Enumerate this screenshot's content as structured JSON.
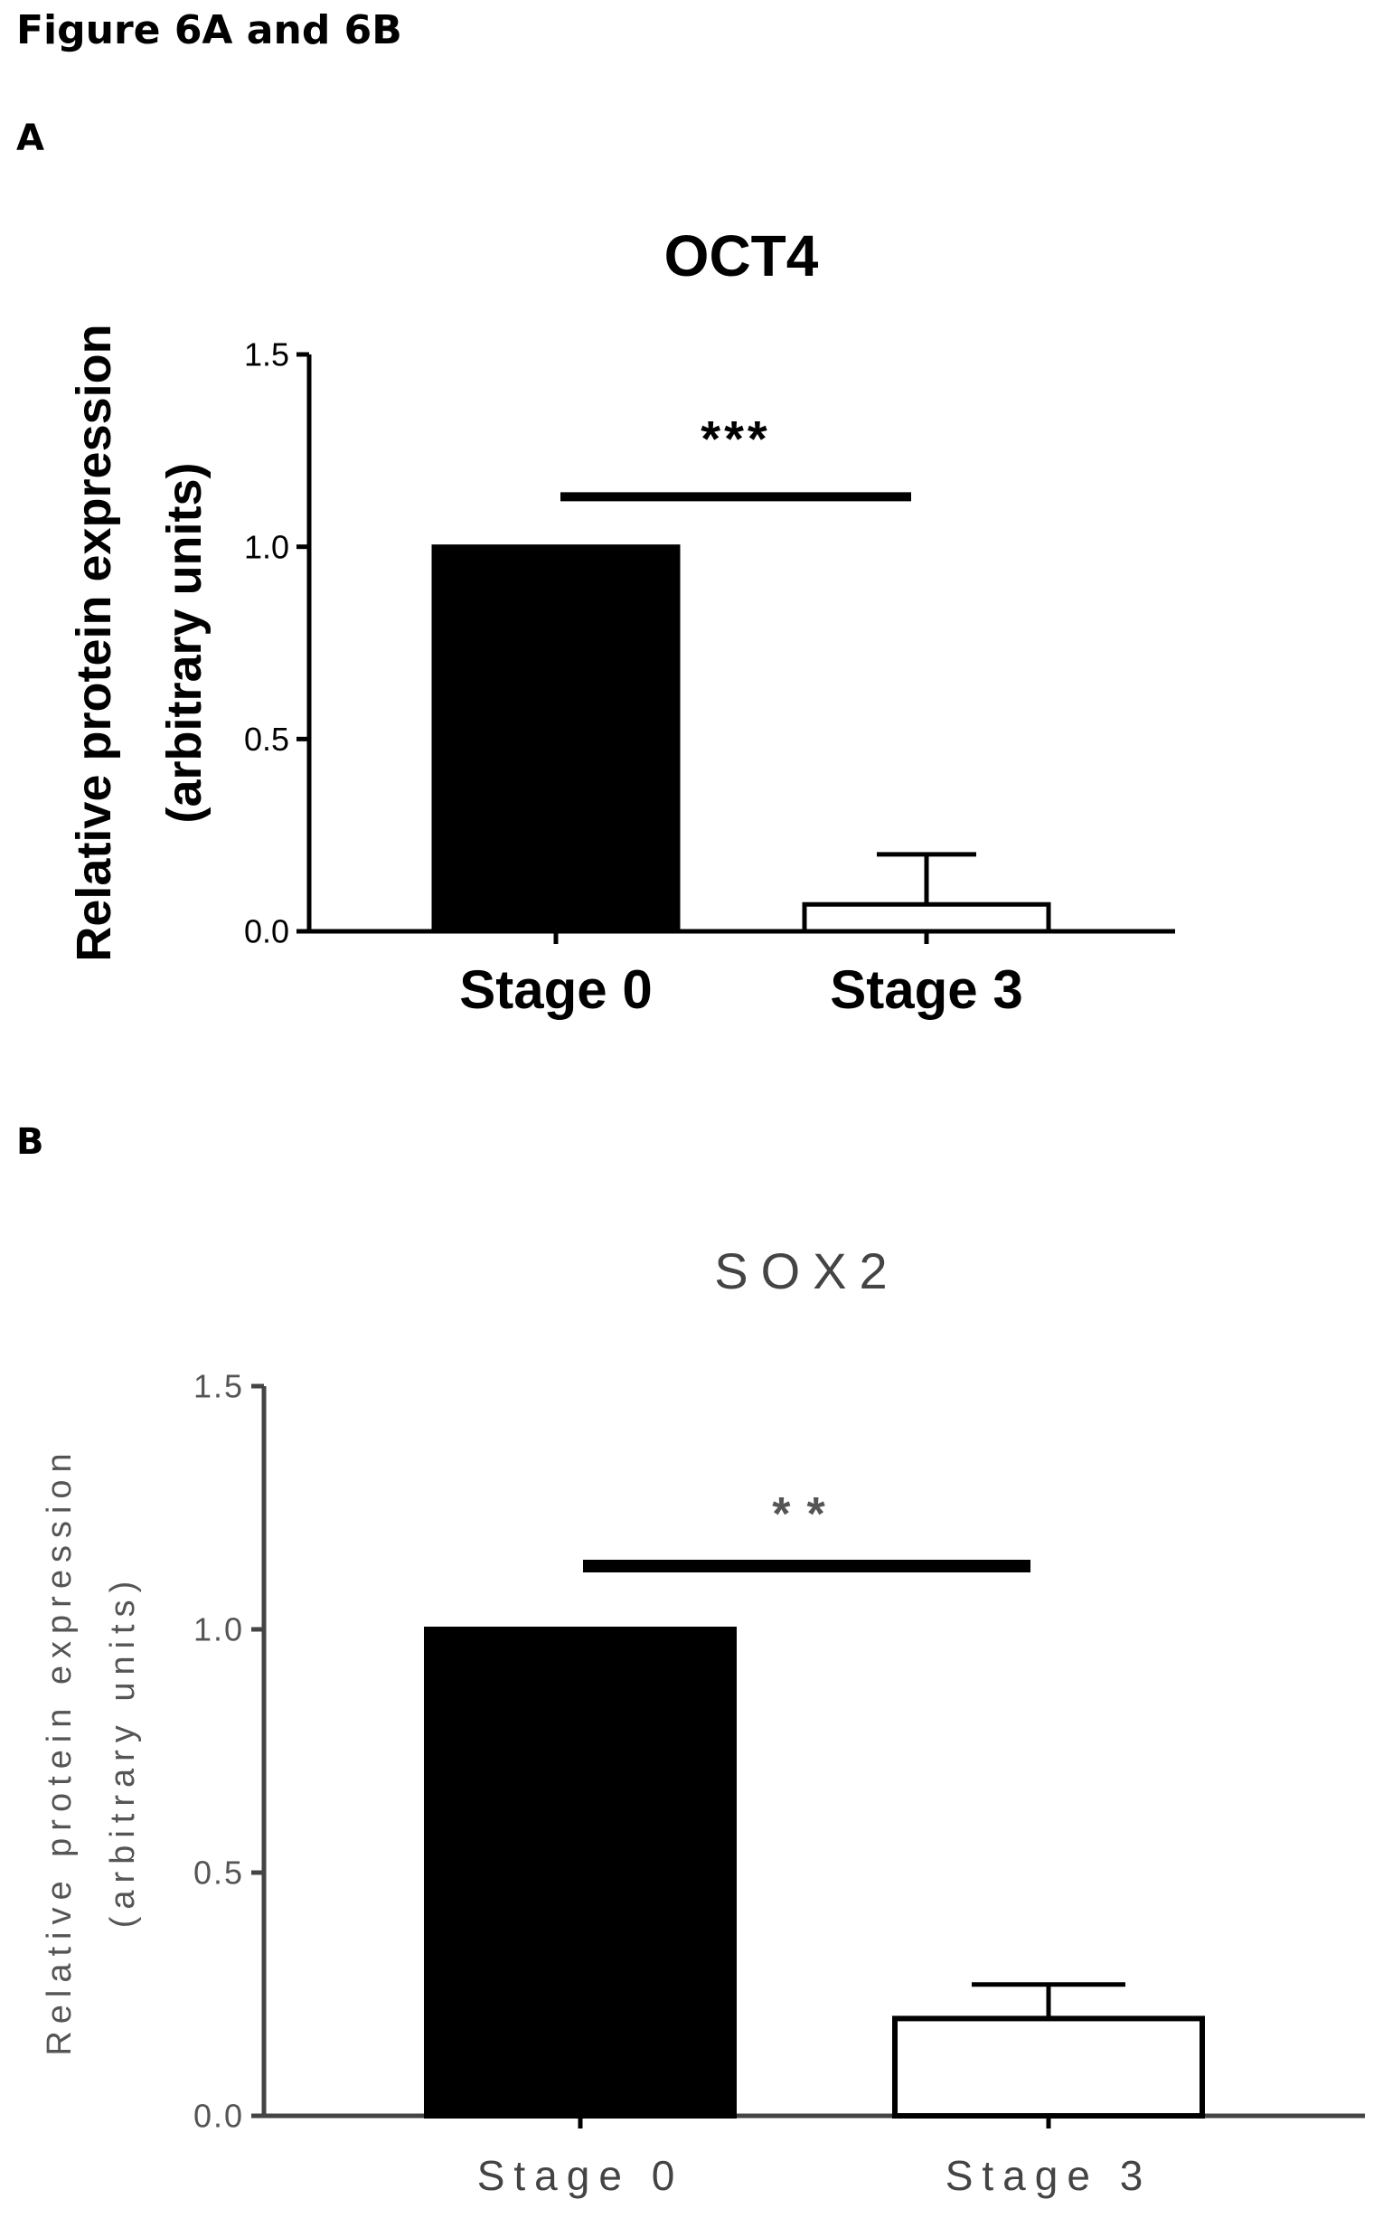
{
  "figure_title": "Figure 6A and 6B",
  "panels": [
    {
      "label": "A"
    },
    {
      "label": "B"
    }
  ],
  "chart_data": [
    {
      "type": "bar",
      "title": "OCT4",
      "ylabel_line1": "Relative protein expression",
      "ylabel_line2": "(arbitrary units)",
      "categories": [
        "Stage 0",
        "Stage 3"
      ],
      "values": [
        1.0,
        0.07
      ],
      "error_upper": [
        0.0,
        0.2
      ],
      "bar_fill": [
        "#000000",
        "#ffffff"
      ],
      "ylim": [
        0,
        1.5
      ],
      "yticks": [
        "0.0",
        "0.5",
        "1.0",
        "1.5"
      ],
      "ytick_values": [
        0,
        0.5,
        1.0,
        1.5
      ],
      "significance": {
        "label": "***",
        "from": "Stage 0",
        "to": "Stage 3",
        "level": 1.13
      },
      "grid": false
    },
    {
      "type": "bar",
      "title": "SOX2",
      "ylabel_line1": "Relative protein expression",
      "ylabel_line2": "(arbitrary units)",
      "categories": [
        "Stage 0",
        "Stage 3"
      ],
      "values": [
        1.0,
        0.2
      ],
      "error_upper": [
        0.0,
        0.27
      ],
      "bar_fill": [
        "#000000",
        "#ffffff"
      ],
      "ylim": [
        0,
        1.5
      ],
      "yticks": [
        "0.0",
        "0.5",
        "1.0",
        "1.5"
      ],
      "ytick_values": [
        0,
        0.5,
        1.0,
        1.5
      ],
      "significance": {
        "label": "**",
        "from": "Stage 0",
        "to": "Stage 3",
        "level": 1.13
      },
      "grid": false
    }
  ]
}
